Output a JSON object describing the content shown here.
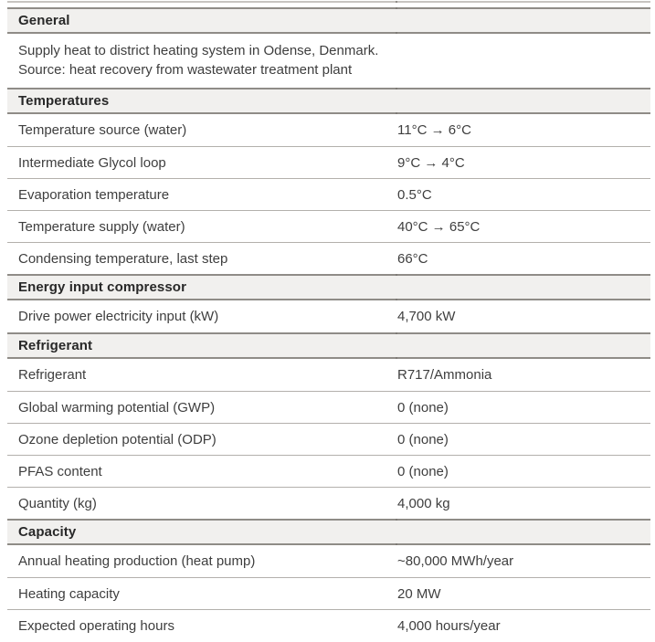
{
  "table": {
    "colors": {
      "band_bg": "#f1f0ee",
      "band_border": "#8f8c87",
      "row_divider": "#b3b0ac",
      "text": "#3e3e3e",
      "heading_text": "#282828",
      "top_fragment_line": "#c7c4c0"
    },
    "sections": [
      {
        "title": "General",
        "lines": [
          "Supply heat to district heating system in Odense, Denmark.",
          "Source: heat recovery from wastewater treatment plant"
        ]
      },
      {
        "title": "Temperatures",
        "rows": [
          {
            "label": "Temperature source (water)",
            "value": "11°C → 6°C"
          },
          {
            "label": "Intermediate Glycol loop",
            "value": "9°C → 4°C"
          },
          {
            "label": "Evaporation temperature",
            "value": "0.5°C"
          },
          {
            "label": "Temperature supply (water)",
            "value": "40°C → 65°C"
          },
          {
            "label": "Condensing temperature, last step",
            "value": "66°C"
          }
        ]
      },
      {
        "title": "Energy input compressor",
        "rows": [
          {
            "label": "Drive power electricity input (kW)",
            "value": "4,700 kW"
          }
        ]
      },
      {
        "title": "Refrigerant",
        "rows": [
          {
            "label": "Refrigerant",
            "value": "R717/Ammonia"
          },
          {
            "label": "Global warming potential (GWP)",
            "value": "0 (none)"
          },
          {
            "label": "Ozone depletion potential (ODP)",
            "value": "0 (none)"
          },
          {
            "label": "PFAS content",
            "value": "0 (none)"
          },
          {
            "label": "Quantity (kg)",
            "value": "4,000 kg"
          }
        ]
      },
      {
        "title": "Capacity",
        "rows": [
          {
            "label": "Annual heating production (heat pump)",
            "value": "~80,000 MWh/year"
          },
          {
            "label": "Heating capacity",
            "value": "20 MW"
          },
          {
            "label": "Expected operating hours",
            "value": "4,000 hours/year"
          }
        ]
      }
    ]
  }
}
